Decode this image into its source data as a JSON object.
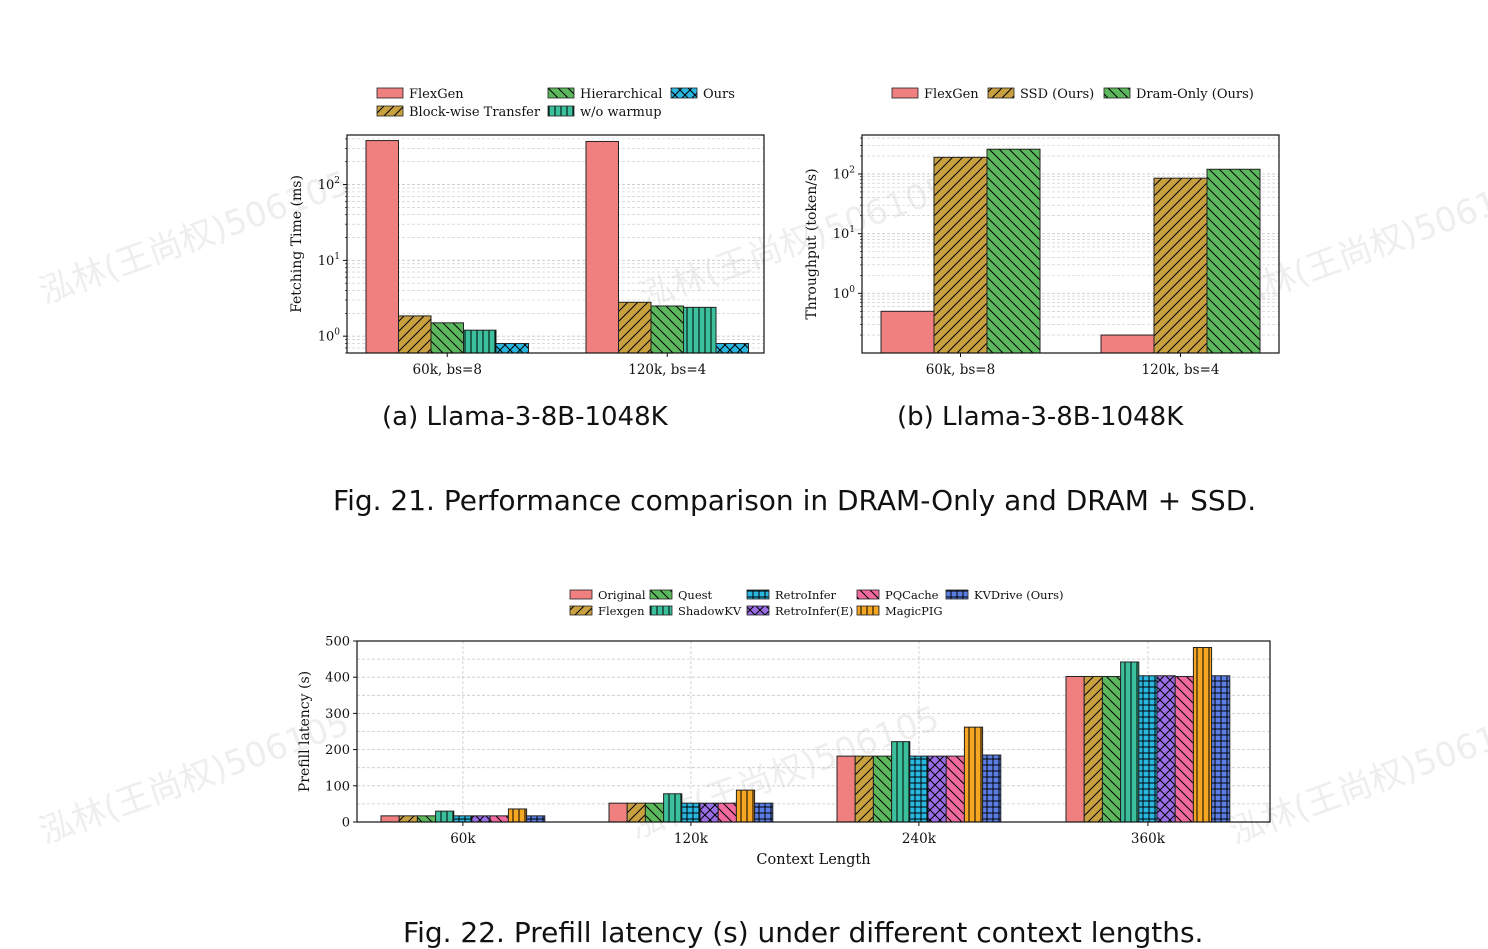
{
  "watermark": "泓林(王尚权)506105",
  "captions": {
    "sub_a": "(a) Llama-3-8B-1048K",
    "sub_b": "(b) Llama-3-8B-1048K",
    "fig21": "Fig. 21.  Performance comparison in DRAM-Only and DRAM + SSD.",
    "fig22": "Fig. 22.  Prefill latency (s) under different context lengths."
  },
  "chart_data": [
    {
      "id": "a",
      "type": "bar",
      "yscale": "log",
      "ylabel": "Fetching Time (ms)",
      "xlabel": "",
      "ylim": [
        0.6,
        450
      ],
      "yticks": [
        {
          "value": 1,
          "label": "10^0"
        },
        {
          "value": 10,
          "label": "10^1"
        },
        {
          "value": 100,
          "label": "10^2"
        }
      ],
      "grid": true,
      "legend": "top",
      "categories": [
        "60k, bs=8",
        "120k, bs=4"
      ],
      "series": [
        {
          "name": "FlexGen",
          "color": "#f08080",
          "pattern": "none",
          "values": [
            380,
            370
          ]
        },
        {
          "name": "Block-wise Transfer",
          "color": "#c8a040",
          "pattern": "fwd",
          "values": [
            1.85,
            2.8
          ]
        },
        {
          "name": "Hierarchical",
          "color": "#5cb85c",
          "pattern": "back",
          "values": [
            1.5,
            2.5
          ]
        },
        {
          "name": "w/o warmup",
          "color": "#3cbf9c",
          "pattern": "vert",
          "values": [
            1.2,
            2.4
          ]
        },
        {
          "name": "Ours",
          "color": "#29b6e0",
          "pattern": "cross",
          "values": [
            0.8,
            0.8
          ]
        }
      ]
    },
    {
      "id": "b",
      "type": "bar",
      "yscale": "log",
      "ylabel": "Throughput (token/s)",
      "xlabel": "",
      "ylim": [
        0.1,
        450
      ],
      "yticks": [
        {
          "value": 1,
          "label": "10^0"
        },
        {
          "value": 10,
          "label": "10^1"
        },
        {
          "value": 100,
          "label": "10^2"
        }
      ],
      "grid": true,
      "legend": "top",
      "categories": [
        "60k, bs=8",
        "120k, bs=4"
      ],
      "series": [
        {
          "name": "FlexGen",
          "color": "#f08080",
          "pattern": "none",
          "values": [
            0.5,
            0.2
          ]
        },
        {
          "name": "SSD (Ours)",
          "color": "#c8a040",
          "pattern": "fwd",
          "values": [
            190,
            85
          ]
        },
        {
          "name": "Dram-Only (Ours)",
          "color": "#5cb85c",
          "pattern": "back",
          "values": [
            260,
            120
          ]
        }
      ]
    },
    {
      "id": "c",
      "type": "bar",
      "yscale": "linear",
      "ylabel": "Prefill latency (s)",
      "xlabel": "Context Length",
      "ylim": [
        0,
        500
      ],
      "yticks": [
        {
          "value": 0,
          "label": "0"
        },
        {
          "value": 100,
          "label": "100"
        },
        {
          "value": 200,
          "label": "200"
        },
        {
          "value": 300,
          "label": "300"
        },
        {
          "value": 400,
          "label": "400"
        },
        {
          "value": 500,
          "label": "500"
        }
      ],
      "grid": true,
      "legend": "top",
      "categories": [
        "60k",
        "120k",
        "240k",
        "360k"
      ],
      "series": [
        {
          "name": "Original",
          "color": "#f08080",
          "pattern": "none",
          "values": [
            17,
            52,
            182,
            402
          ]
        },
        {
          "name": "Flexgen",
          "color": "#c8a040",
          "pattern": "fwd",
          "values": [
            17,
            52,
            182,
            402
          ]
        },
        {
          "name": "Quest",
          "color": "#5cb85c",
          "pattern": "back",
          "values": [
            17,
            52,
            182,
            402
          ]
        },
        {
          "name": "ShadowKV",
          "color": "#3cbf9c",
          "pattern": "vert",
          "values": [
            30,
            78,
            222,
            442
          ]
        },
        {
          "name": "RetroInfer",
          "color": "#29b6e0",
          "pattern": "grid",
          "values": [
            17,
            52,
            182,
            404
          ]
        },
        {
          "name": "RetroInfer(E)",
          "color": "#9b6ee8",
          "pattern": "cross",
          "values": [
            17,
            52,
            182,
            404
          ]
        },
        {
          "name": "PQCache",
          "color": "#f06aa0",
          "pattern": "back",
          "values": [
            17,
            52,
            182,
            402
          ]
        },
        {
          "name": "MagicPIG",
          "color": "#f5a623",
          "pattern": "vert",
          "values": [
            36,
            88,
            262,
            482
          ]
        },
        {
          "name": "KVDrive (Ours)",
          "color": "#5b7ee5",
          "pattern": "grid",
          "values": [
            17,
            52,
            185,
            404
          ]
        }
      ]
    }
  ]
}
